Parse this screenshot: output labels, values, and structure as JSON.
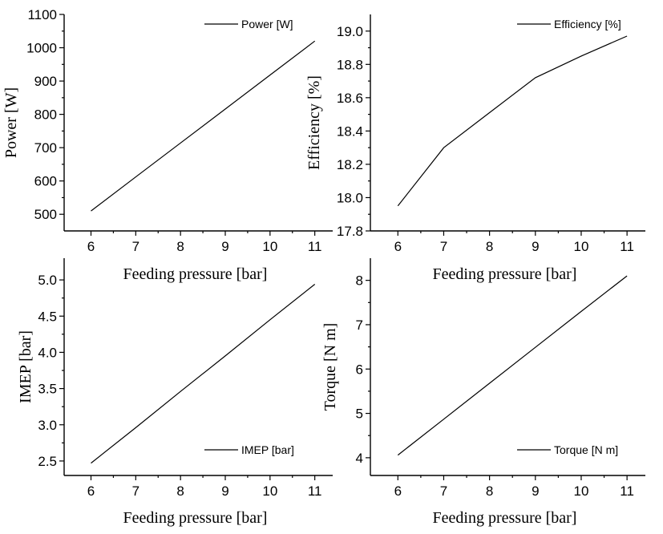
{
  "chart_data": [
    {
      "type": "line",
      "xlabel": "Feeding pressure [bar]",
      "ylabel": "Power [W]",
      "legend": "Power [W]",
      "legend_position": "top-right",
      "xlim": [
        5.4,
        11.4
      ],
      "ylim": [
        450,
        1100
      ],
      "xticks": [
        6,
        7,
        8,
        9,
        10,
        11
      ],
      "yticks": [
        500,
        600,
        700,
        800,
        900,
        1000,
        1100
      ],
      "ytick_labels": [
        "500",
        "600",
        "700",
        "800",
        "900",
        "1000",
        "1100"
      ],
      "x": [
        6,
        7,
        8,
        9,
        10,
        11
      ],
      "y": [
        510,
        612,
        714,
        816,
        918,
        1020
      ]
    },
    {
      "type": "line",
      "xlabel": "Feeding pressure [bar]",
      "ylabel": "Efficiency [%]",
      "legend": "Efficiency [%]",
      "legend_position": "top-right",
      "xlim": [
        5.4,
        11.4
      ],
      "ylim": [
        17.8,
        19.1
      ],
      "xticks": [
        6,
        7,
        8,
        9,
        10,
        11
      ],
      "yticks": [
        17.8,
        18.0,
        18.2,
        18.4,
        18.6,
        18.8,
        19.0
      ],
      "ytick_labels": [
        "17.8",
        "18.0",
        "18.2",
        "18.4",
        "18.6",
        "18.8",
        "19.0"
      ],
      "x": [
        6,
        7,
        8,
        9,
        10,
        11
      ],
      "y": [
        17.95,
        18.3,
        18.51,
        18.72,
        18.85,
        18.97
      ]
    },
    {
      "type": "line",
      "xlabel": "Feeding pressure [bar]",
      "ylabel": "IMEP [bar]",
      "legend": "IMEP [bar]",
      "legend_position": "bottom-right",
      "xlim": [
        5.4,
        11.4
      ],
      "ylim": [
        2.3,
        5.3
      ],
      "xticks": [
        6,
        7,
        8,
        9,
        10,
        11
      ],
      "yticks": [
        2.5,
        3.0,
        3.5,
        4.0,
        4.5,
        5.0
      ],
      "ytick_labels": [
        "2.5",
        "3.0",
        "3.5",
        "4.0",
        "4.5",
        "5.0"
      ],
      "x": [
        6,
        7,
        8,
        9,
        10,
        11
      ],
      "y": [
        2.47,
        2.96,
        3.46,
        3.95,
        4.45,
        4.94
      ]
    },
    {
      "type": "line",
      "xlabel": "Feeding pressure [bar]",
      "ylabel": "Torque [N m]",
      "legend": "Torque [N m]",
      "legend_position": "bottom-right",
      "xlim": [
        5.4,
        11.4
      ],
      "ylim": [
        3.6,
        8.5
      ],
      "xticks": [
        6,
        7,
        8,
        9,
        10,
        11
      ],
      "yticks": [
        4,
        5,
        6,
        7,
        8
      ],
      "ytick_labels": [
        "4",
        "5",
        "6",
        "7",
        "8"
      ],
      "x": [
        6,
        7,
        8,
        9,
        10,
        11
      ],
      "y": [
        4.06,
        4.87,
        5.68,
        6.49,
        7.3,
        8.1
      ]
    }
  ]
}
